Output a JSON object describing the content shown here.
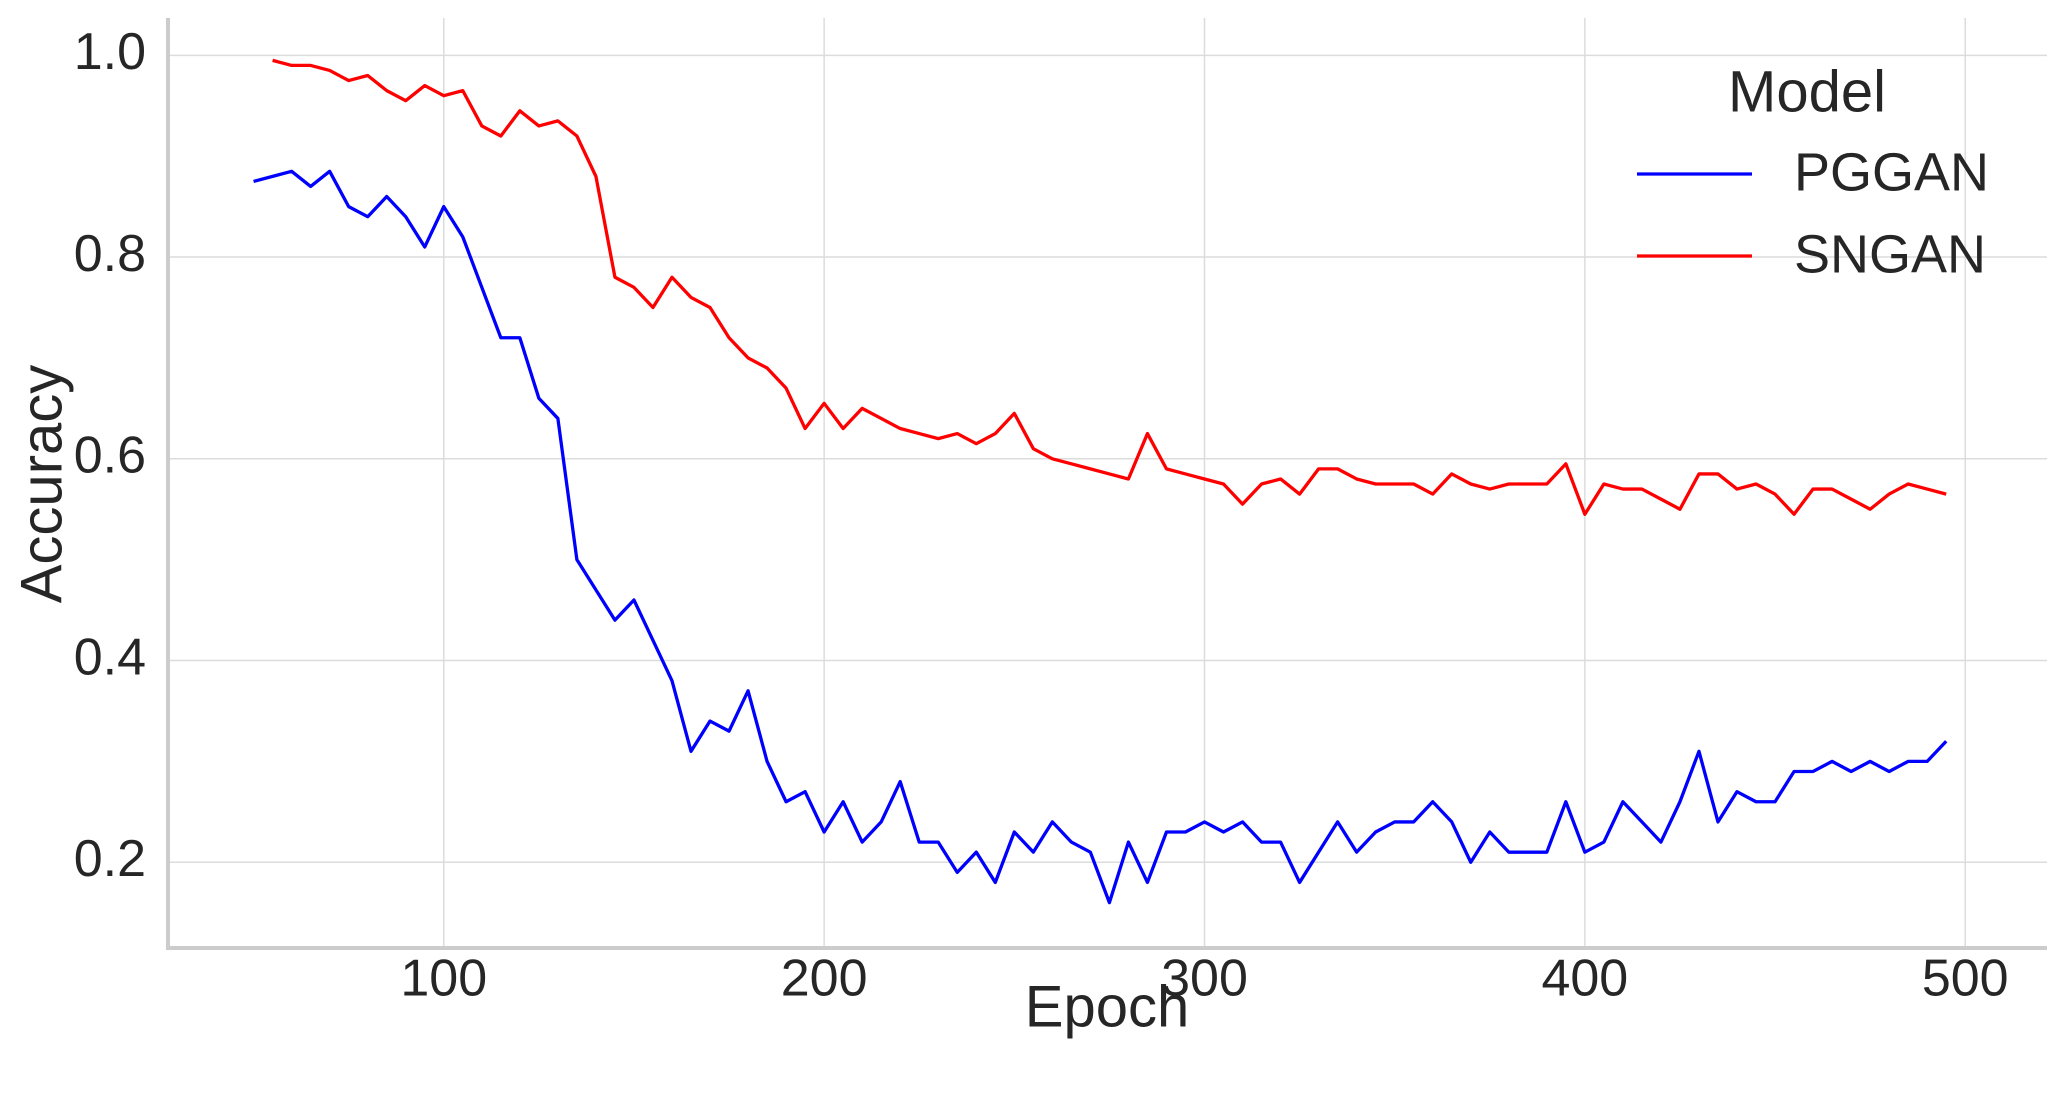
{
  "chart_data": {
    "type": "line",
    "x_label": "Epoch",
    "y_label": "Accuracy",
    "legend_title": "Model",
    "legend_position": "upper right",
    "grid": true,
    "xlim": [
      27.5,
      521.5
    ],
    "ylim": [
      0.115,
      1.037
    ],
    "xticks": [
      100,
      200,
      300,
      400,
      500
    ],
    "yticks": [
      0.2,
      0.4,
      0.6,
      0.8,
      {
        "value": 1,
        "label": "1.0"
      }
    ],
    "x": [
      50,
      55,
      60,
      65,
      70,
      75,
      80,
      85,
      90,
      95,
      100,
      105,
      110,
      115,
      120,
      125,
      130,
      135,
      140,
      145,
      150,
      155,
      160,
      165,
      170,
      175,
      180,
      185,
      190,
      195,
      200,
      205,
      210,
      215,
      220,
      225,
      230,
      235,
      240,
      245,
      250,
      255,
      260,
      265,
      270,
      275,
      280,
      285,
      290,
      295,
      300,
      305,
      310,
      315,
      320,
      325,
      330,
      335,
      340,
      345,
      350,
      355,
      360,
      365,
      370,
      375,
      380,
      385,
      390,
      395,
      400,
      405,
      410,
      415,
      420,
      425,
      430,
      435,
      440,
      445,
      450,
      455,
      460,
      465,
      470,
      475,
      480,
      485,
      490,
      495
    ],
    "series": [
      {
        "name": "PGGAN",
        "color": "#0000ff",
        "values": [
          0.875,
          0.88,
          0.885,
          0.87,
          0.885,
          0.85,
          0.84,
          0.86,
          0.84,
          0.81,
          0.85,
          0.82,
          0.77,
          0.72,
          0.72,
          0.66,
          0.64,
          0.5,
          0.47,
          0.44,
          0.46,
          0.42,
          0.38,
          0.31,
          0.34,
          0.33,
          0.37,
          0.3,
          0.26,
          0.27,
          0.23,
          0.26,
          0.22,
          0.24,
          0.28,
          0.22,
          0.22,
          0.19,
          0.21,
          0.18,
          0.23,
          0.21,
          0.24,
          0.22,
          0.21,
          0.16,
          0.22,
          0.18,
          0.23,
          0.23,
          0.24,
          0.23,
          0.24,
          0.22,
          0.22,
          0.18,
          0.21,
          0.24,
          0.21,
          0.23,
          0.24,
          0.24,
          0.26,
          0.24,
          0.2,
          0.23,
          0.21,
          0.21,
          0.21,
          0.26,
          0.21,
          0.22,
          0.26,
          0.24,
          0.22,
          0.26,
          0.31,
          0.24,
          0.27,
          0.26,
          0.26,
          0.29,
          0.29,
          0.3,
          0.29,
          0.3,
          0.29,
          0.3,
          0.3,
          0.32
        ]
      },
      {
        "name": "SNGAN",
        "color": "#ff0000",
        "values": [
          null,
          0.995,
          0.99,
          0.99,
          0.985,
          0.975,
          0.98,
          0.965,
          0.955,
          0.97,
          0.96,
          0.965,
          0.93,
          0.92,
          0.945,
          0.93,
          0.935,
          0.92,
          0.88,
          0.78,
          0.77,
          0.75,
          0.78,
          0.76,
          0.75,
          0.72,
          0.7,
          0.69,
          0.67,
          0.63,
          0.655,
          0.63,
          0.65,
          0.64,
          0.63,
          0.625,
          0.62,
          0.625,
          0.615,
          0.625,
          0.645,
          0.61,
          0.6,
          0.595,
          0.59,
          0.585,
          0.58,
          0.625,
          0.59,
          0.585,
          0.58,
          0.575,
          0.555,
          0.575,
          0.58,
          0.565,
          0.59,
          0.59,
          0.58,
          0.575,
          0.575,
          0.575,
          0.565,
          0.585,
          0.575,
          0.57,
          0.575,
          0.575,
          0.575,
          0.595,
          0.545,
          0.575,
          0.57,
          0.57,
          0.56,
          0.55,
          0.585,
          0.585,
          0.57,
          0.575,
          0.565,
          0.545,
          0.57,
          0.57,
          0.56,
          0.55,
          0.565,
          0.575,
          0.57,
          0.565
        ]
      }
    ]
  }
}
